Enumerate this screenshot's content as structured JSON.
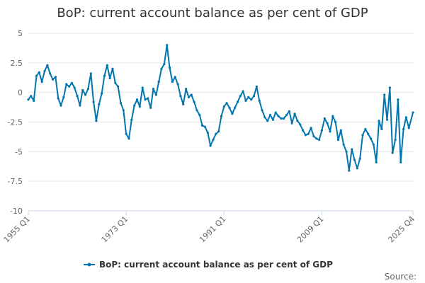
{
  "chart_data": {
    "type": "line",
    "title": "BoP: current account balance as per cent of GDP",
    "xlabel": "",
    "ylabel": "",
    "ylim": [
      -10,
      5
    ],
    "yticks": [
      "5",
      "2.5",
      "0",
      "-2.5",
      "-5",
      "-7.5",
      "-10"
    ],
    "ytick_values": [
      5,
      2.5,
      0,
      -2.5,
      -5,
      -7.5,
      -10
    ],
    "xtick_labels": [
      "1955 Q1",
      "1973 Q1",
      "1991 Q1",
      "2009 Q1",
      "2025 Q4"
    ],
    "grid": "horizontal",
    "legend_position": "bottom",
    "colors": {
      "line": "#0075b0",
      "grid": "#e6e6e6",
      "axis": "#ccd6eb",
      "text": "#333333"
    },
    "source_label": "Source:",
    "series": [
      {
        "name": "BoP: current account balance as per cent of GDP",
        "x": [
          1955.0,
          1955.5,
          1956.0,
          1956.5,
          1957.0,
          1957.5,
          1958.0,
          1958.5,
          1959.0,
          1959.5,
          1960.0,
          1960.5,
          1961.0,
          1961.5,
          1962.0,
          1962.5,
          1963.0,
          1963.5,
          1964.0,
          1964.5,
          1965.0,
          1965.5,
          1966.0,
          1966.5,
          1967.0,
          1967.5,
          1968.0,
          1968.5,
          1969.0,
          1969.5,
          1970.0,
          1970.5,
          1971.0,
          1971.5,
          1972.0,
          1972.5,
          1973.0,
          1973.5,
          1974.0,
          1974.5,
          1975.0,
          1975.5,
          1976.0,
          1976.5,
          1977.0,
          1977.5,
          1978.0,
          1978.5,
          1979.0,
          1979.5,
          1980.0,
          1980.5,
          1981.0,
          1981.5,
          1982.0,
          1982.5,
          1983.0,
          1983.5,
          1984.0,
          1984.5,
          1985.0,
          1985.5,
          1986.0,
          1986.5,
          1987.0,
          1987.5,
          1988.0,
          1988.5,
          1989.0,
          1989.5,
          1990.0,
          1990.5,
          1991.0,
          1991.5,
          1992.0,
          1992.5,
          1993.0,
          1993.5,
          1994.0,
          1994.5,
          1995.0,
          1995.5,
          1996.0,
          1996.5,
          1997.0,
          1997.5,
          1998.0,
          1998.5,
          1999.0,
          1999.5,
          2000.0,
          2000.5,
          2001.0,
          2001.5,
          2002.0,
          2002.5,
          2003.0,
          2003.5,
          2004.0,
          2004.5,
          2005.0,
          2005.5,
          2006.0,
          2006.5,
          2007.0,
          2007.5,
          2008.0,
          2008.5,
          2009.0,
          2009.5,
          2010.0,
          2010.5,
          2011.0,
          2011.5,
          2012.0,
          2012.5,
          2013.0,
          2013.5,
          2014.0,
          2014.5,
          2015.0,
          2015.5,
          2016.0,
          2016.5,
          2017.0,
          2017.5,
          2018.0,
          2018.5,
          2019.0,
          2019.5,
          2020.0,
          2020.5,
          2021.0,
          2021.5,
          2022.0,
          2022.5,
          2023.0,
          2023.5,
          2024.0,
          2024.5,
          2025.0,
          2025.75
        ],
        "values": [
          -0.6,
          -0.3,
          -0.7,
          1.4,
          1.7,
          0.9,
          1.8,
          2.3,
          1.6,
          1.1,
          1.3,
          -0.5,
          -1.1,
          -0.4,
          0.7,
          0.5,
          0.8,
          0.4,
          -0.3,
          -1.1,
          0.2,
          -0.2,
          0.3,
          1.6,
          -0.8,
          -2.4,
          -1.0,
          -0.1,
          1.4,
          2.3,
          1.2,
          2.0,
          0.8,
          0.5,
          -0.9,
          -1.5,
          -3.5,
          -3.9,
          -2.3,
          -1.1,
          -0.6,
          -1.2,
          0.4,
          -0.6,
          -0.5,
          -1.3,
          0.3,
          -0.2,
          0.9,
          2.0,
          2.4,
          4.0,
          2.1,
          0.9,
          1.3,
          0.7,
          -0.3,
          -1.0,
          0.3,
          -0.4,
          -0.2,
          -0.8,
          -1.5,
          -1.9,
          -2.8,
          -2.9,
          -3.4,
          -4.5,
          -4.0,
          -3.5,
          -3.3,
          -2.0,
          -1.2,
          -0.9,
          -1.3,
          -1.8,
          -1.3,
          -0.8,
          -0.3,
          0.1,
          -0.7,
          -0.4,
          -0.6,
          -0.3,
          0.5,
          -0.7,
          -1.5,
          -2.1,
          -2.4,
          -1.9,
          -2.3,
          -1.7,
          -2.0,
          -2.2,
          -2.2,
          -1.9,
          -1.6,
          -2.6,
          -1.8,
          -2.4,
          -2.7,
          -3.2,
          -3.6,
          -3.5,
          -3.0,
          -3.7,
          -3.9,
          -4.0,
          -3.2,
          -2.2,
          -2.6,
          -3.3,
          -2.0,
          -2.5,
          -4.0,
          -3.2,
          -4.4,
          -5.0,
          -6.6,
          -4.8,
          -5.7,
          -6.4,
          -5.6,
          -3.6,
          -3.1,
          -3.5,
          -3.9,
          -4.4,
          -5.9,
          -2.4,
          -3.1,
          -0.2,
          -2.3,
          0.4,
          -5.1,
          -4.0,
          -0.6,
          -5.9,
          -3.1,
          -2.1,
          -3.0,
          -1.7
        ]
      }
    ]
  }
}
